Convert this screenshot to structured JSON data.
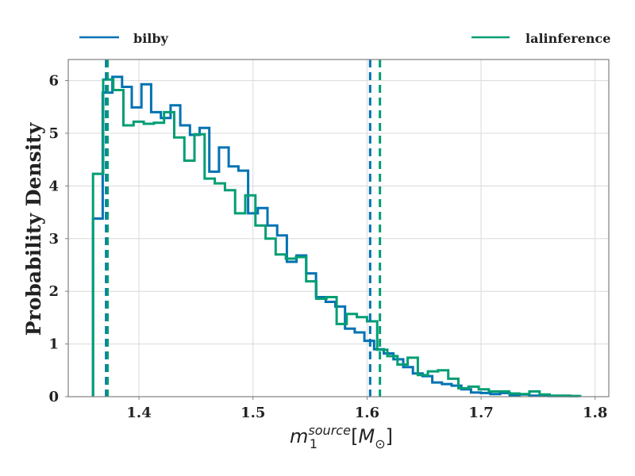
{
  "chart_data": {
    "type": "histogram",
    "title": "",
    "xlabel": {
      "base": "m",
      "subscript": "1",
      "superscript": "source",
      "unit_symbol": "M",
      "unit_subscript": "⊙"
    },
    "ylabel": "Probability Density",
    "xlim": [
      1.338,
      1.812
    ],
    "ylim": [
      0,
      6.4
    ],
    "xticks": [
      1.4,
      1.5,
      1.6,
      1.7,
      1.8
    ],
    "xtick_labels": [
      "1.4",
      "1.5",
      "1.6",
      "1.7",
      "1.8"
    ],
    "yticks": [
      0,
      1,
      2,
      3,
      4,
      5,
      6
    ],
    "ytick_labels": [
      "0",
      "1",
      "2",
      "3",
      "4",
      "5",
      "6"
    ],
    "grid": true,
    "legend_placement": "above plot, spanning width",
    "series": [
      {
        "name": "bilby",
        "color": "#0072b2",
        "bin_edges": [
          1.3597,
          1.3682,
          1.3767,
          1.3852,
          1.3937,
          1.4022,
          1.4107,
          1.4192,
          1.4277,
          1.4362,
          1.4447,
          1.4532,
          1.4617,
          1.4702,
          1.4787,
          1.4872,
          1.4957,
          1.5042,
          1.5127,
          1.5212,
          1.5297,
          1.5382,
          1.5467,
          1.5552,
          1.5637,
          1.5722,
          1.5807,
          1.5892,
          1.5977,
          1.6062,
          1.6147,
          1.6232,
          1.6317,
          1.6402,
          1.6487,
          1.6572,
          1.6657,
          1.6742,
          1.6827,
          1.6912,
          1.6997,
          1.7082,
          1.7167,
          1.7252,
          1.7337,
          1.7422,
          1.7507,
          1.7592,
          1.7677,
          1.7762,
          1.7847
        ],
        "density": [
          3.38,
          5.77,
          6.07,
          5.88,
          5.49,
          5.93,
          5.4,
          5.29,
          5.53,
          5.15,
          4.97,
          5.1,
          4.27,
          4.73,
          4.37,
          4.29,
          3.48,
          3.58,
          3.25,
          3.06,
          2.56,
          2.68,
          2.34,
          1.89,
          1.8,
          1.71,
          1.29,
          1.22,
          1.06,
          0.9,
          0.82,
          0.71,
          0.56,
          0.44,
          0.39,
          0.27,
          0.24,
          0.21,
          0.14,
          0.08,
          0.07,
          0.05,
          0.07,
          0.03,
          0.04,
          0.02,
          0.02,
          0.01,
          0.01,
          0.01
        ],
        "interval_lines": [
          1.3712,
          1.6027
        ]
      },
      {
        "name": "lalinference",
        "color": "#009e73",
        "bin_edges": [
          1.3597,
          1.3686,
          1.3775,
          1.3864,
          1.3953,
          1.4042,
          1.4131,
          1.422,
          1.4309,
          1.4398,
          1.4487,
          1.4576,
          1.4665,
          1.4754,
          1.4843,
          1.4932,
          1.5021,
          1.511,
          1.5199,
          1.5288,
          1.5377,
          1.5466,
          1.5555,
          1.5644,
          1.5733,
          1.5822,
          1.5911,
          1.6,
          1.6089,
          1.6178,
          1.6267,
          1.6356,
          1.6445,
          1.6534,
          1.6623,
          1.6712,
          1.6801,
          1.689,
          1.6979,
          1.7068,
          1.7157,
          1.7246,
          1.7335,
          1.7424,
          1.7513,
          1.7602,
          1.7691,
          1.778,
          1.7869
        ],
        "density": [
          4.23,
          6.02,
          5.82,
          5.15,
          5.22,
          5.18,
          5.2,
          5.4,
          4.92,
          4.48,
          4.98,
          4.14,
          4.05,
          3.92,
          3.48,
          3.82,
          3.25,
          3.0,
          2.7,
          2.62,
          2.65,
          2.19,
          1.86,
          1.89,
          1.38,
          1.57,
          1.51,
          1.43,
          0.89,
          0.77,
          0.61,
          0.74,
          0.41,
          0.48,
          0.5,
          0.34,
          0.16,
          0.19,
          0.14,
          0.1,
          0.1,
          0.06,
          0.05,
          0.1,
          0.04,
          0.02,
          0.02,
          0.01
        ],
        "interval_lines": [
          1.3725,
          1.6113
        ]
      }
    ]
  }
}
